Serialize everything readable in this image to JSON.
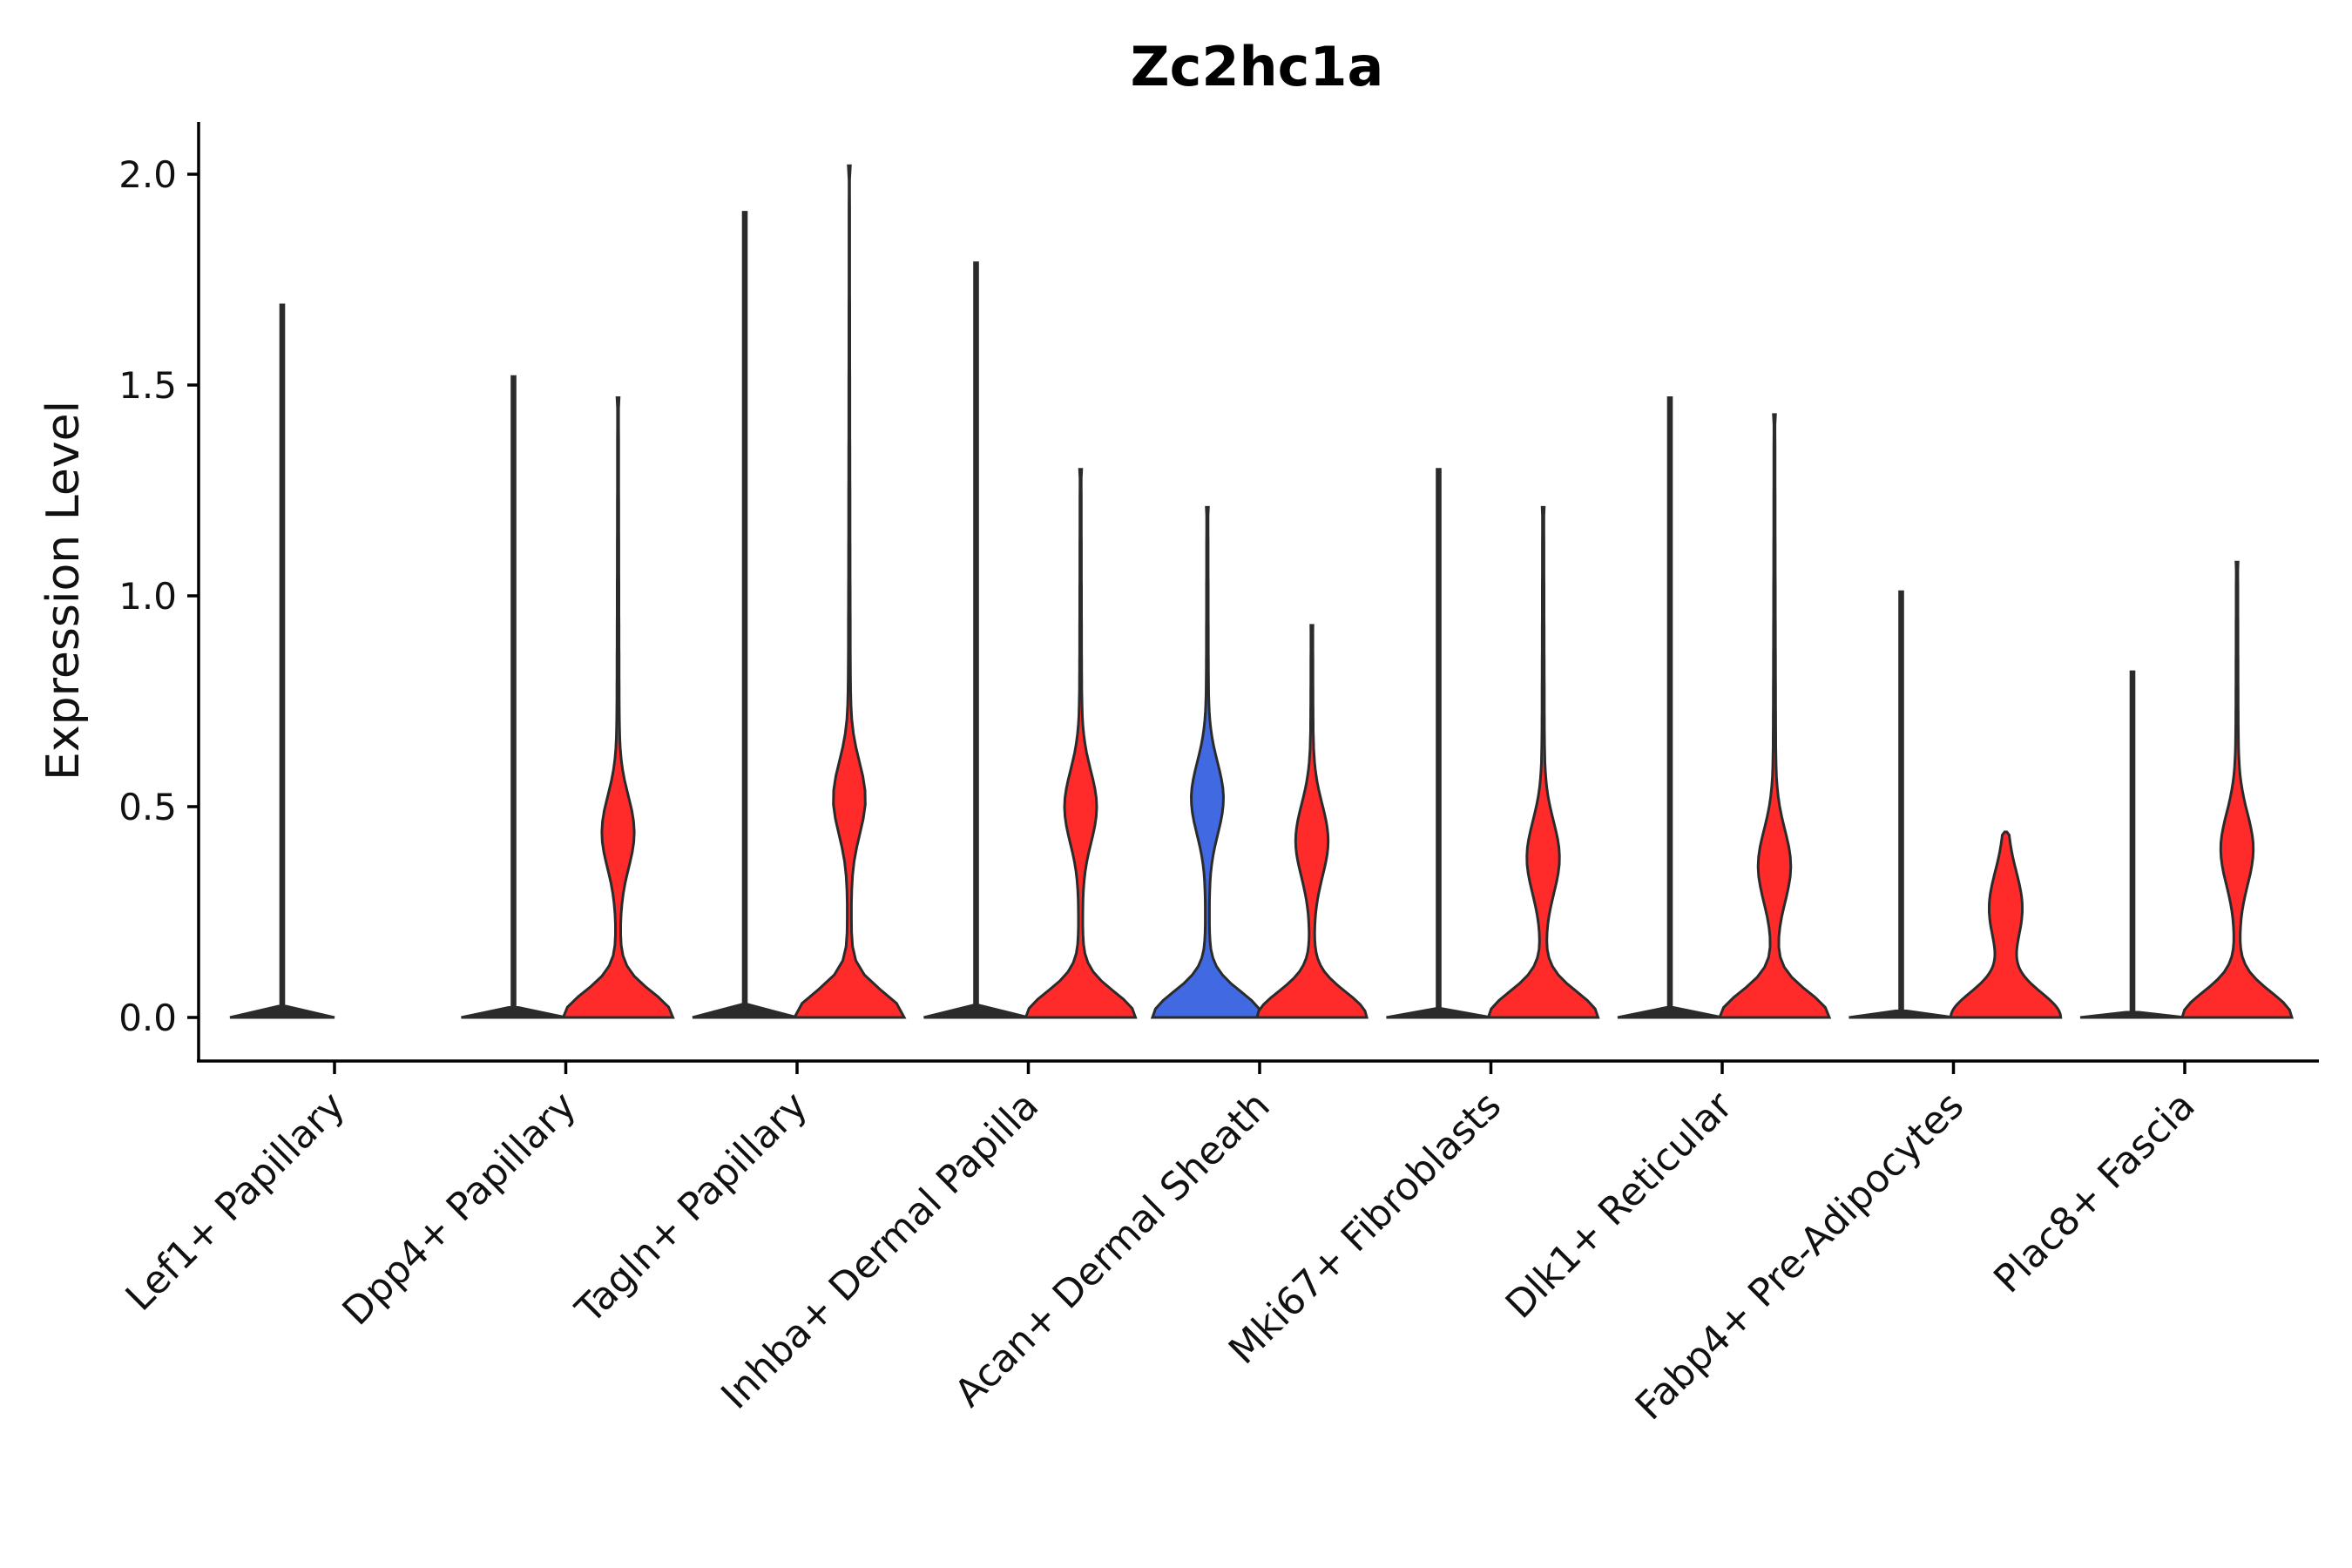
{
  "chart_data": {
    "type": "violin",
    "title": "Zc2hc1a",
    "ylabel": "Expression Level",
    "xlabel": "",
    "ylim": [
      -0.1,
      2.12
    ],
    "yticks": [
      0.0,
      0.5,
      1.0,
      1.5,
      2.0
    ],
    "ytick_labels": [
      "0.0",
      "0.5",
      "1.0",
      "1.5",
      "2.0"
    ],
    "grid": false,
    "legend": "none",
    "colors": {
      "blue": "#4169e1",
      "red": "#ff2b2b",
      "outline": "#2b2b2b"
    },
    "categories": [
      "Lef1+ Papillary",
      "Dpp4+ Papillary",
      "Tagln+ Papillary",
      "Inhba+ Dermal Papilla",
      "Acan+ Dermal Sheath",
      "Mki67+ Fibroblasts",
      "Dlk1+ Reticular",
      "Fabp4+ Pre-Adipocytes",
      "Plac8+ Fascia"
    ],
    "groups": [
      {
        "category": "Lef1+ Papillary",
        "split": "blue",
        "max": 1.69,
        "shape": "flat"
      },
      {
        "category": "Lef1+ Papillary",
        "split": "red",
        "max": null,
        "shape": "none"
      },
      {
        "category": "Dpp4+ Papillary",
        "split": "blue",
        "max": 1.52,
        "shape": "flat"
      },
      {
        "category": "Dpp4+ Papillary",
        "split": "red",
        "max": 1.47,
        "shape": "wide",
        "mode2": 0.44
      },
      {
        "category": "Tagln+ Papillary",
        "split": "blue",
        "max": 1.91,
        "shape": "flat"
      },
      {
        "category": "Tagln+ Papillary",
        "split": "red",
        "max": 2.02,
        "shape": "wide",
        "mode2": 0.52
      },
      {
        "category": "Inhba+ Dermal Papilla",
        "split": "blue",
        "max": 1.79,
        "shape": "flat"
      },
      {
        "category": "Inhba+ Dermal Papilla",
        "split": "red",
        "max": 1.3,
        "shape": "wide",
        "mode2": 0.5
      },
      {
        "category": "Acan+ Dermal Sheath",
        "split": "blue",
        "max": 1.21,
        "shape": "wide",
        "mode2": 0.52
      },
      {
        "category": "Acan+ Dermal Sheath",
        "split": "red",
        "max": 0.93,
        "shape": "wide",
        "mode2": 0.42
      },
      {
        "category": "Mki67+ Fibroblasts",
        "split": "blue",
        "max": 1.3,
        "shape": "flat"
      },
      {
        "category": "Mki67+ Fibroblasts",
        "split": "red",
        "max": 1.21,
        "shape": "wide",
        "mode2": 0.38
      },
      {
        "category": "Dlk1+ Reticular",
        "split": "blue",
        "max": 1.47,
        "shape": "flat"
      },
      {
        "category": "Dlk1+ Reticular",
        "split": "red",
        "max": 1.43,
        "shape": "wide",
        "mode2": 0.36
      },
      {
        "category": "Fabp4+ Pre-Adipocytes",
        "split": "blue",
        "max": 1.01,
        "shape": "flat"
      },
      {
        "category": "Fabp4+ Pre-Adipocytes",
        "split": "red",
        "max": 0.44,
        "shape": "wide",
        "mode2": 0.26
      },
      {
        "category": "Plac8+ Fascia",
        "split": "blue",
        "max": 0.82,
        "shape": "flat"
      },
      {
        "category": "Plac8+ Fascia",
        "split": "red",
        "max": 1.08,
        "shape": "wide",
        "mode2": 0.4
      }
    ]
  }
}
